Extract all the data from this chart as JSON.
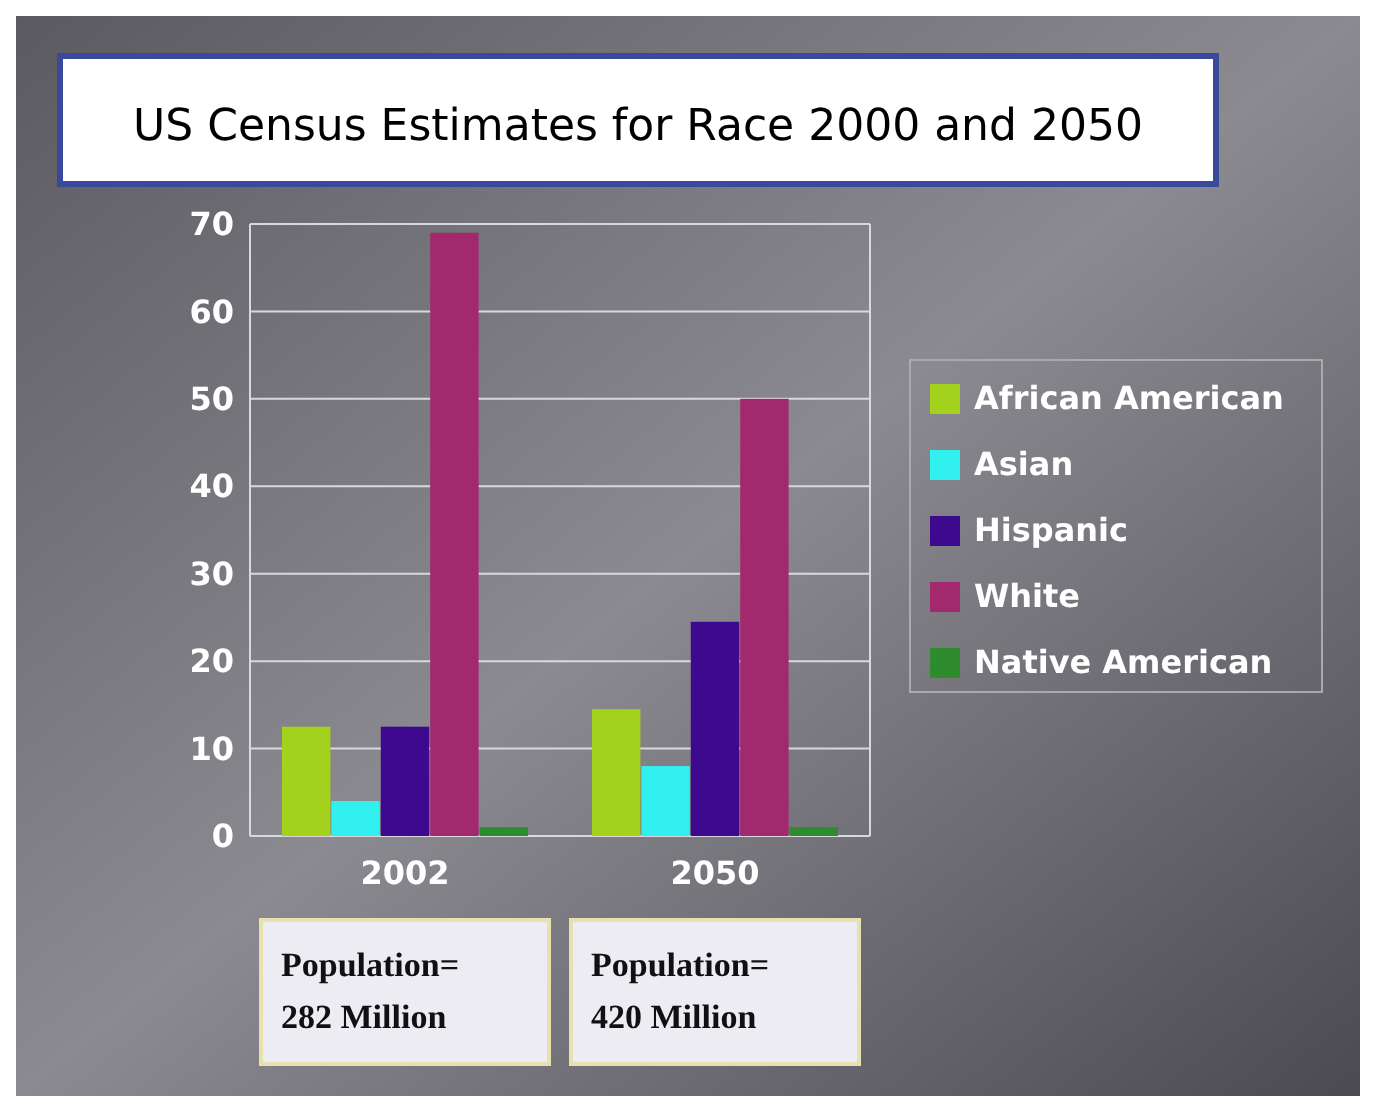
{
  "chart_data": {
    "type": "bar",
    "title": "US Census Estimates for Race 2000 and 2050",
    "categories": [
      "2002",
      "2050"
    ],
    "series": [
      {
        "name": "African American",
        "color": "#a4d11c",
        "values": [
          12.5,
          14.5
        ]
      },
      {
        "name": "Asian",
        "color": "#33f0f0",
        "values": [
          4,
          8
        ]
      },
      {
        "name": "Hispanic",
        "color": "#3d0a8f",
        "values": [
          12.5,
          24.5
        ]
      },
      {
        "name": "White",
        "color": "#a3296e",
        "values": [
          69,
          50
        ]
      },
      {
        "name": "Native American",
        "color": "#2e8b2e",
        "values": [
          1,
          1
        ]
      }
    ],
    "ylim": [
      0,
      70
    ],
    "yticks": [
      0,
      10,
      20,
      30,
      40,
      50,
      60,
      70
    ],
    "grid": "y",
    "legend": "right",
    "annotations": [
      "Population=\n282 Million",
      "Population=\n420 Million"
    ]
  }
}
